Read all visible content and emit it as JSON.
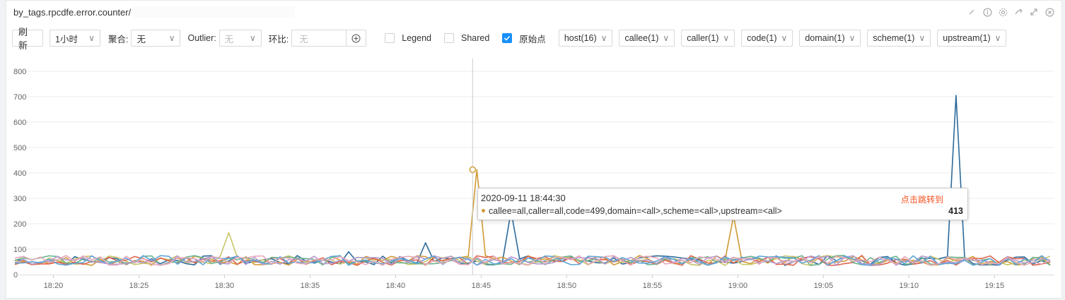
{
  "panel": {
    "title": "by_tags.rpcdfe.error.counter/",
    "icons": [
      "edit-icon",
      "info-icon",
      "settings-icon",
      "share-icon",
      "expand-icon",
      "close-icon"
    ]
  },
  "toolbar": {
    "refresh_label": "刷 新",
    "time_range": "1小时",
    "aggregate_label": "聚合:",
    "aggregate_value": "无",
    "outlier_label": "Outlier:",
    "outlier_value": "无",
    "compare_label": "环比:",
    "compare_placeholder": "无",
    "legend_label": "Legend",
    "legend_checked": false,
    "shared_label": "Shared",
    "shared_checked": false,
    "raw_label": "原始点",
    "raw_checked": true,
    "tag_filters": [
      "host(16)",
      "callee(1)",
      "caller(1)",
      "code(1)",
      "domain(1)",
      "scheme(1)",
      "upstream(1)"
    ]
  },
  "tooltip": {
    "time": "2020-09-11 18:44:30",
    "jump_label": "点击跳转到",
    "series": "callee=all,caller=all,code=499,domain=<all>,scheme=<all>,upstream=<all>",
    "value": "413",
    "color": "#d09a35"
  },
  "chart_data": {
    "type": "line",
    "x_tick_labels": [
      "18:20",
      "18:25",
      "18:30",
      "18:35",
      "18:40",
      "18:45",
      "18:50",
      "18:55",
      "19:00",
      "19:05",
      "19:10",
      "19:15"
    ],
    "x_range_minutes": [
      18.2,
      19.42
    ],
    "ylim": [
      0,
      850
    ],
    "y_ticks": [
      0,
      100,
      200,
      300,
      400,
      500,
      600,
      700,
      800
    ],
    "grid": true,
    "legend": "hidden",
    "crosshair_time": "18:44:30",
    "baseline_range": [
      20,
      85
    ],
    "series": [
      {
        "color": "#2d6a9a",
        "spikes": [
          {
            "t": "18:46:40",
            "v": 250
          },
          {
            "t": "19:12:50",
            "v": 705
          },
          {
            "t": "18:41:40",
            "v": 125
          },
          {
            "t": "18:37:10",
            "v": 90
          }
        ]
      },
      {
        "color": "#d09a35",
        "spikes": [
          {
            "t": "18:44:30",
            "v": 413
          },
          {
            "t": "18:59:50",
            "v": 230
          }
        ]
      },
      {
        "color": "#c9c46a",
        "spikes": [
          {
            "t": "18:30:00",
            "v": 165
          }
        ]
      },
      {
        "color": "#e0654e",
        "spikes": []
      },
      {
        "color": "#6bb38c",
        "spikes": []
      },
      {
        "color": "#b79ad0",
        "spikes": []
      },
      {
        "color": "#5fa6d8",
        "spikes": []
      },
      {
        "color": "#e6a8b8",
        "spikes": []
      }
    ]
  }
}
